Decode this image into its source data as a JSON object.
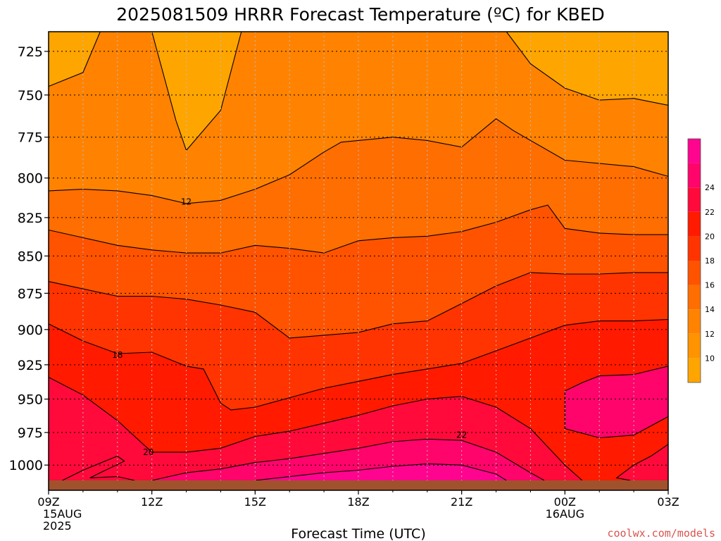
{
  "chart_data": {
    "type": "contour",
    "title": "2025081509 HRRR Forecast Temperature (ºC) for KBED",
    "xlabel": "Forecast Time (UTC)",
    "ylabel": "",
    "x_ticks": [
      {
        "label": "09Z",
        "sub": [
          "15AUG",
          "2025"
        ],
        "hour": 9
      },
      {
        "label": "12Z",
        "sub": [],
        "hour": 12
      },
      {
        "label": "15Z",
        "sub": [],
        "hour": 15
      },
      {
        "label": "18Z",
        "sub": [],
        "hour": 18
      },
      {
        "label": "21Z",
        "sub": [],
        "hour": 21
      },
      {
        "label": "00Z",
        "sub": [
          "16AUG"
        ],
        "hour": 24
      },
      {
        "label": "03Z",
        "sub": [],
        "hour": 27
      }
    ],
    "xlim": [
      9,
      27
    ],
    "y_ticks": [
      725,
      750,
      775,
      800,
      825,
      850,
      875,
      900,
      925,
      950,
      975,
      1000
    ],
    "ylim": [
      714,
      1012
    ],
    "y_scale": "log",
    "y_reversed": true,
    "grid": true,
    "colorbar": {
      "levels": [
        8,
        10,
        12,
        14,
        16,
        18,
        20,
        22,
        24,
        26
      ],
      "tick_labels": [
        10,
        12,
        14,
        16,
        18,
        20,
        22,
        24
      ],
      "colors": [
        "#FFA500",
        "#FF9400",
        "#FF8300",
        "#FF6E00",
        "#FF5300",
        "#FF3400",
        "#FF1A00",
        "#FF0A3A",
        "#FF046A",
        "#FF058F"
      ]
    },
    "contour_labels": [
      {
        "text": "12",
        "hour": 13.0,
        "p": 815
      },
      {
        "text": "18",
        "hour": 11.0,
        "p": 918
      },
      {
        "text": "20",
        "hour": 11.9,
        "p": 990
      },
      {
        "text": "22",
        "hour": 21.0,
        "p": 977
      }
    ],
    "contours": [
      {
        "level": 12,
        "points": [
          [
            9,
            745
          ],
          [
            10,
            737
          ],
          [
            10.5,
            714
          ],
          [
            12,
            714
          ],
          [
            12.7,
            765
          ],
          [
            13,
            783
          ],
          [
            14,
            759
          ],
          [
            14.6,
            714
          ]
        ]
      },
      {
        "level": 12,
        "points": [
          [
            22.3,
            714
          ],
          [
            23,
            732
          ],
          [
            24,
            746
          ],
          [
            25,
            753
          ],
          [
            26,
            752
          ],
          [
            27,
            756
          ]
        ]
      },
      {
        "level": 12,
        "points": [
          [
            9,
            808
          ],
          [
            10,
            807
          ],
          [
            11,
            808
          ],
          [
            12,
            811
          ],
          [
            13,
            816
          ],
          [
            14,
            814
          ],
          [
            15,
            807
          ],
          [
            16,
            798
          ],
          [
            17,
            784
          ],
          [
            17.5,
            778
          ],
          [
            19,
            775
          ],
          [
            20,
            777
          ],
          [
            21,
            781
          ],
          [
            22,
            764
          ],
          [
            22.5,
            771
          ],
          [
            24,
            789
          ],
          [
            26,
            793
          ],
          [
            27,
            799
          ]
        ]
      },
      {
        "level": 14,
        "points": [
          [
            9,
            833
          ],
          [
            10,
            838
          ],
          [
            11,
            843
          ],
          [
            12,
            846
          ],
          [
            13,
            848
          ],
          [
            14,
            848
          ],
          [
            15,
            843
          ],
          [
            16,
            845
          ],
          [
            17,
            848
          ],
          [
            18,
            840
          ],
          [
            19,
            838
          ],
          [
            20,
            837
          ],
          [
            21,
            834
          ],
          [
            22,
            828
          ],
          [
            23,
            820
          ],
          [
            23.5,
            817
          ],
          [
            24,
            832
          ],
          [
            25,
            835
          ],
          [
            26,
            836
          ],
          [
            27,
            836
          ]
        ]
      },
      {
        "level": 16,
        "points": [
          [
            9,
            867
          ],
          [
            10,
            872
          ],
          [
            11,
            877
          ],
          [
            12,
            877
          ],
          [
            13,
            879
          ],
          [
            14,
            883
          ],
          [
            15,
            888
          ],
          [
            16,
            906
          ],
          [
            17,
            904
          ],
          [
            18,
            902
          ],
          [
            19,
            896
          ],
          [
            20,
            894
          ],
          [
            21,
            882
          ],
          [
            22,
            870
          ],
          [
            23,
            861
          ],
          [
            24,
            862
          ],
          [
            25,
            862
          ],
          [
            26,
            861
          ],
          [
            27,
            861
          ]
        ]
      },
      {
        "level": 18,
        "points": [
          [
            9,
            896
          ],
          [
            10,
            908
          ],
          [
            11,
            917
          ],
          [
            12,
            916
          ],
          [
            13,
            926
          ],
          [
            13.5,
            928
          ],
          [
            14,
            953
          ],
          [
            14.3,
            958
          ],
          [
            15,
            956
          ],
          [
            16,
            949
          ],
          [
            17,
            942
          ],
          [
            18,
            937
          ],
          [
            19,
            932
          ],
          [
            20,
            928
          ],
          [
            21,
            924
          ],
          [
            22,
            915
          ],
          [
            23,
            906
          ],
          [
            24,
            897
          ],
          [
            25,
            894
          ],
          [
            26,
            894
          ],
          [
            27,
            893
          ]
        ]
      },
      {
        "level": 20,
        "points": [
          [
            9,
            934
          ],
          [
            10,
            947
          ],
          [
            11,
            966
          ],
          [
            12,
            990
          ],
          [
            13,
            990
          ],
          [
            14,
            987
          ],
          [
            15,
            978
          ],
          [
            16,
            974
          ],
          [
            17,
            968
          ],
          [
            18,
            962
          ],
          [
            19,
            955
          ],
          [
            20,
            950
          ],
          [
            21,
            948
          ],
          [
            22,
            956
          ],
          [
            23,
            972
          ],
          [
            24,
            1000
          ],
          [
            24.5,
            1012
          ]
        ]
      },
      {
        "level": 20,
        "points": [
          [
            9.4,
            1012
          ],
          [
            10,
            1004
          ],
          [
            11,
            993
          ],
          [
            11.2,
            997
          ],
          [
            10.5,
            1006
          ],
          [
            10.2,
            1010
          ],
          [
            11,
            1009
          ],
          [
            11.5,
            1012
          ]
        ]
      },
      {
        "level": 20,
        "points": [
          [
            27,
            984
          ],
          [
            26.5,
            993
          ],
          [
            26,
            1000
          ],
          [
            25.5,
            1010
          ],
          [
            25.9,
            1012
          ]
        ]
      },
      {
        "level": 22,
        "points": [
          [
            12,
            1012
          ],
          [
            13,
            1006
          ],
          [
            14,
            1003
          ],
          [
            15,
            998
          ],
          [
            16,
            995
          ],
          [
            17,
            991
          ],
          [
            18,
            987
          ],
          [
            19,
            982
          ],
          [
            20,
            980
          ],
          [
            21,
            981
          ],
          [
            22,
            990
          ],
          [
            23,
            1006
          ],
          [
            23.4,
            1012
          ]
        ]
      },
      {
        "level": 22,
        "points": [
          [
            24,
            944
          ],
          [
            24.5,
            938
          ],
          [
            25,
            933
          ],
          [
            26,
            932
          ],
          [
            27,
            926
          ],
          [
            27,
            963
          ],
          [
            26,
            977
          ],
          [
            25,
            979
          ],
          [
            24,
            972
          ],
          [
            24,
            960
          ]
        ]
      },
      {
        "level": 24,
        "points": [
          [
            15,
            1012
          ],
          [
            16,
            1009
          ],
          [
            17,
            1006
          ],
          [
            18,
            1004
          ],
          [
            19,
            1001
          ],
          [
            20,
            999
          ],
          [
            21,
            1000
          ],
          [
            22,
            1007
          ],
          [
            22.3,
            1012
          ]
        ]
      }
    ]
  }
}
